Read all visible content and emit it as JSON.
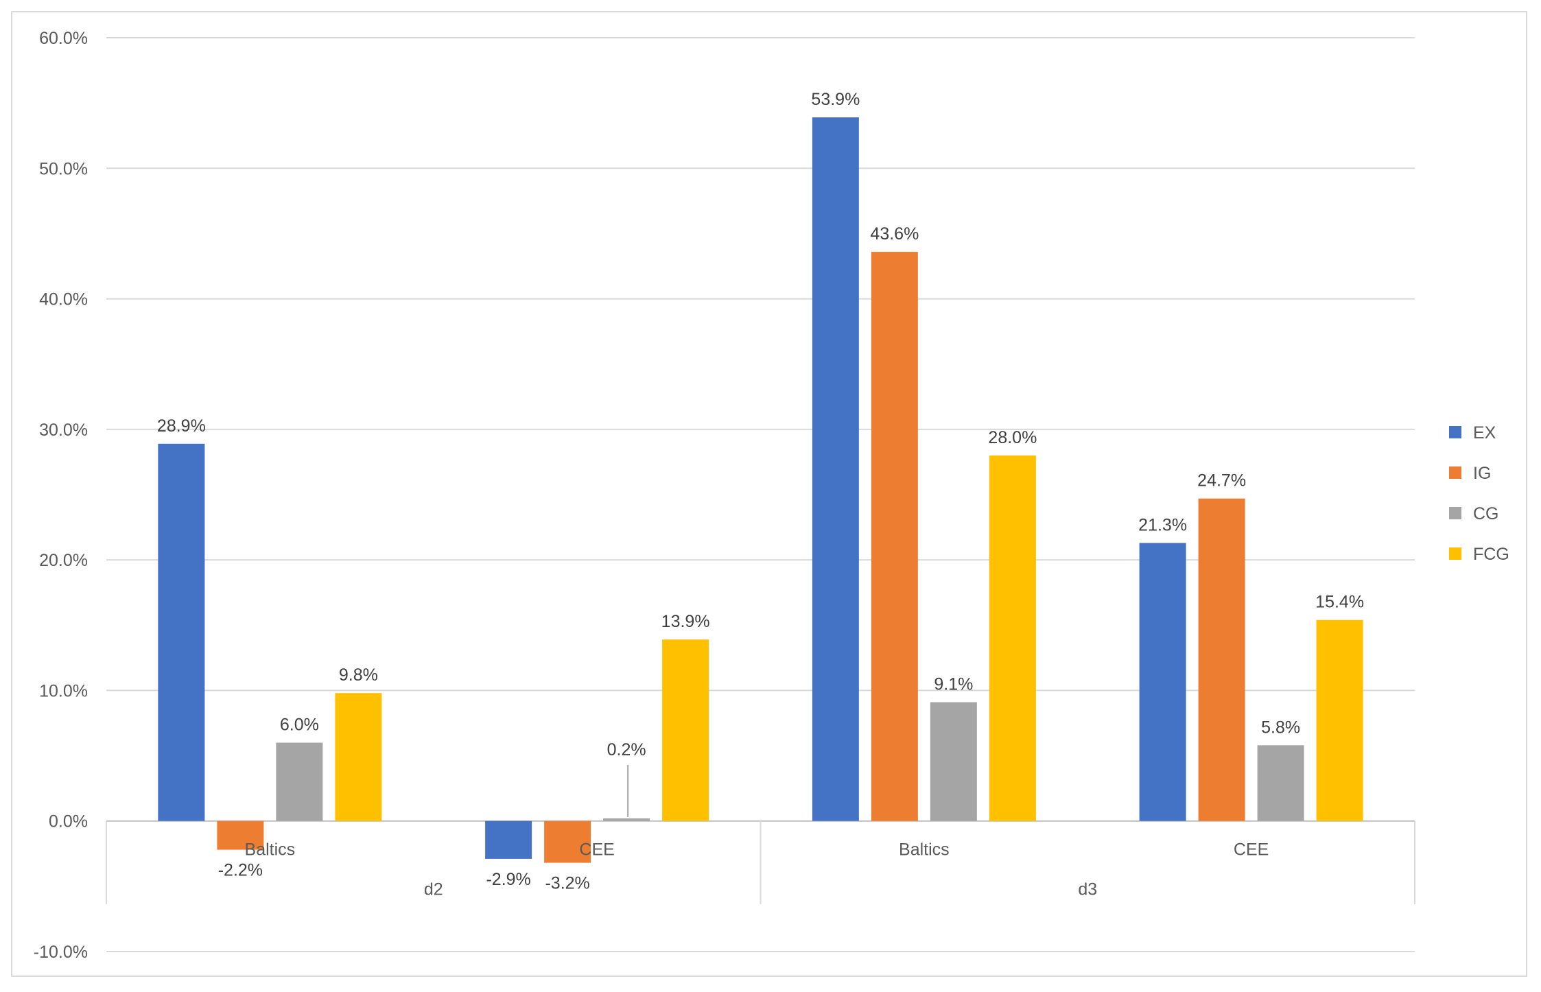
{
  "chart_data": {
    "type": "bar",
    "title": "",
    "xlabel": "",
    "ylabel": "",
    "ylim": [
      -0.1,
      0.6
    ],
    "y_ticks": [
      "-10.0%",
      "0.0%",
      "10.0%",
      "20.0%",
      "30.0%",
      "40.0%",
      "50.0%",
      "60.0%"
    ],
    "grid": true,
    "legend_position": "right",
    "groups": [
      {
        "label": "d2",
        "categories": [
          "Baltics",
          "CEE"
        ]
      },
      {
        "label": "d3",
        "categories": [
          "Baltics",
          "CEE"
        ]
      }
    ],
    "categories": [
      "d2 Baltics",
      "d2 CEE",
      "d3 Baltics",
      "d3 CEE"
    ],
    "series": [
      {
        "name": "EX",
        "color": "#4472c4",
        "values": [
          0.289,
          -0.029,
          0.539,
          0.213
        ],
        "labels": [
          "28.9%",
          "-2.9%",
          "53.9%",
          "21.3%"
        ]
      },
      {
        "name": "IG",
        "color": "#ed7d31",
        "values": [
          -0.022,
          -0.032,
          0.436,
          0.247
        ],
        "labels": [
          "-2.2%",
          "-3.2%",
          "43.6%",
          "24.7%"
        ]
      },
      {
        "name": "CG",
        "color": "#a5a5a5",
        "values": [
          0.06,
          0.002,
          0.091,
          0.058
        ],
        "labels": [
          "6.0%",
          "0.2%",
          "9.1%",
          "5.8%"
        ]
      },
      {
        "name": "FCG",
        "color": "#ffc000",
        "values": [
          0.098,
          0.139,
          0.28,
          0.154
        ],
        "labels": [
          "9.8%",
          "13.9%",
          "28.0%",
          "15.4%"
        ]
      }
    ]
  }
}
